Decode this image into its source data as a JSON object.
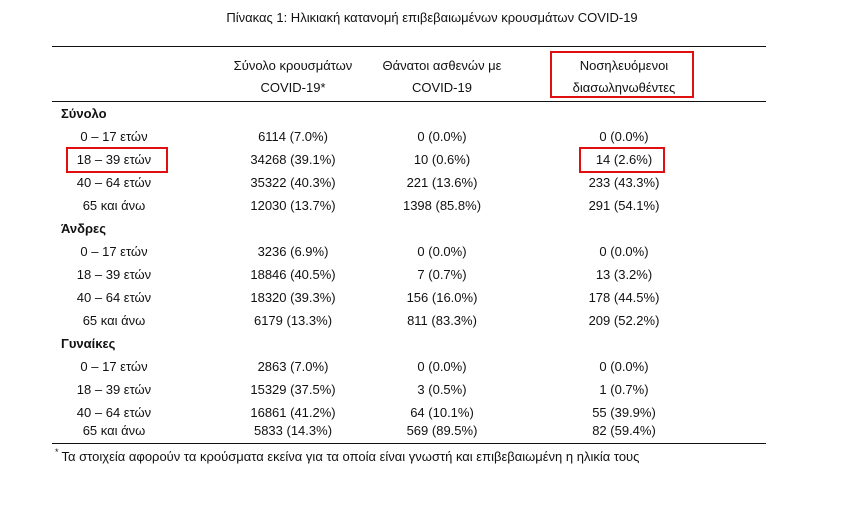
{
  "title": "Πίνακας 1: Ηλικιακή κατανομή επιβεβαιωμένων κρουσμάτων COVID-19",
  "columns": [
    {
      "line1": "Σύνολο κρουσμάτων",
      "line2": "COVID-19*"
    },
    {
      "line1": "Θάνατοι ασθενών με",
      "line2": "COVID-19"
    },
    {
      "line1": "Νοσηλευόμενοι",
      "line2": "διασωληνωθέντες"
    }
  ],
  "sections": [
    {
      "name": "Σύνολο",
      "rows": [
        {
          "age": "0 – 17 ετών",
          "cases": "6114 (7.0%)",
          "deaths": "0 (0.0%)",
          "intubated": "0 (0.0%)"
        },
        {
          "age": "18 – 39 ετών",
          "cases": "34268 (39.1%)",
          "deaths": "10 (0.6%)",
          "intubated": "14 (2.6%)"
        },
        {
          "age": "40 – 64 ετών",
          "cases": "35322 (40.3%)",
          "deaths": "221 (13.6%)",
          "intubated": "233 (43.3%)"
        },
        {
          "age": "65 και άνω",
          "cases": "12030 (13.7%)",
          "deaths": "1398 (85.8%)",
          "intubated": "291 (54.1%)"
        }
      ]
    },
    {
      "name": "Άνδρες",
      "rows": [
        {
          "age": "0 – 17 ετών",
          "cases": "3236 (6.9%)",
          "deaths": "0 (0.0%)",
          "intubated": "0 (0.0%)"
        },
        {
          "age": "18 – 39 ετών",
          "cases": "18846 (40.5%)",
          "deaths": "7 (0.7%)",
          "intubated": "13 (3.2%)"
        },
        {
          "age": "40 – 64 ετών",
          "cases": "18320 (39.3%)",
          "deaths": "156 (16.0%)",
          "intubated": "178 (44.5%)"
        },
        {
          "age": "65 και άνω",
          "cases": "6179 (13.3%)",
          "deaths": "811 (83.3%)",
          "intubated": "209 (52.2%)"
        }
      ]
    },
    {
      "name": "Γυναίκες",
      "rows": [
        {
          "age": "0 – 17 ετών",
          "cases": "2863 (7.0%)",
          "deaths": "0 (0.0%)",
          "intubated": "0 (0.0%)"
        },
        {
          "age": "18 – 39 ετών",
          "cases": "15329 (37.5%)",
          "deaths": "3 (0.5%)",
          "intubated": "1 (0.7%)"
        },
        {
          "age": "40 – 64 ετών",
          "cases": "16861 (41.2%)",
          "deaths": "64 (10.1%)",
          "intubated": "55 (39.9%)"
        },
        {
          "age": "65 και άνω",
          "cases": "5833 (14.3%)",
          "deaths": "569 (89.5%)",
          "intubated": "82 (59.4%)"
        }
      ]
    }
  ],
  "footnote": {
    "marker": "*",
    "text": "Τα στοιχεία αφορούν τα κρούσματα εκείνα για τα οποία είναι γνωστή και επιβεβαιωμένη η ηλικία τους"
  },
  "highlight_color": "#e01010"
}
